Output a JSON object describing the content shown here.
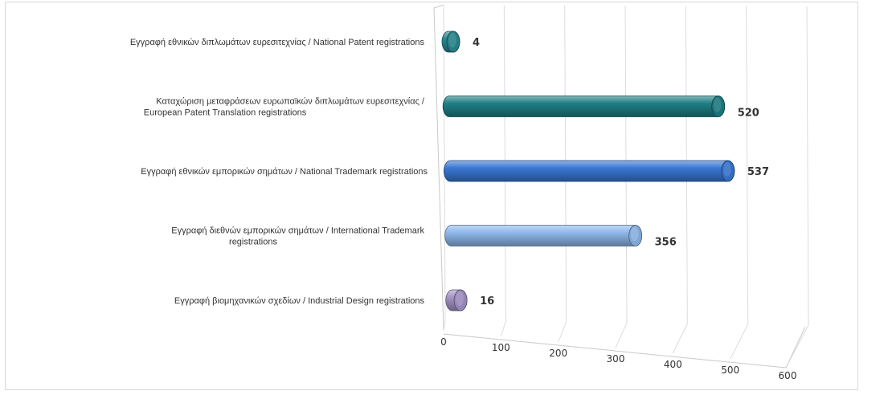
{
  "chart_data": {
    "type": "bar",
    "orientation": "horizontal",
    "style": "3d-cylinder",
    "title": "",
    "xlabel": "",
    "ylabel": "",
    "xlim": [
      0,
      600
    ],
    "x_ticks": [
      "0",
      "100",
      "200",
      "300",
      "400",
      "500",
      "600"
    ],
    "grid": true,
    "legend": "none",
    "categories": [
      {
        "label_lines": [
          "Εγγραφή εθνικών  διπλωμάτων ευρεσιτεχνίας  / National Patent registrations"
        ],
        "value": 4,
        "value_label": "4",
        "color": "#2a8a92"
      },
      {
        "label_lines": [
          "Καταχώριση μεταφράσεων ευρωπαϊκών  διπλωμάτων ευρεσιτεχνίας  /",
          "European Patent Translation registrations"
        ],
        "value": 520,
        "value_label": "520",
        "color": "#1f7f86"
      },
      {
        "label_lines": [
          "Εγγραφή εθνικών  εμπορικών σημάτων  / National Trademark registrations"
        ],
        "value": 537,
        "value_label": "537",
        "color": "#3a78d4"
      },
      {
        "label_lines": [
          "Εγγραφή διεθνών  εμπορικών σημάτων  /  International Trademark",
          "registrations"
        ],
        "value": 356,
        "value_label": "356",
        "color": "#8fb8ec"
      },
      {
        "label_lines": [
          "Εγγραφή βιομηχανικών  σχεδίων  /  Industrial Design registrations"
        ],
        "value": 16,
        "value_label": "16",
        "color": "#a595c8"
      }
    ]
  }
}
